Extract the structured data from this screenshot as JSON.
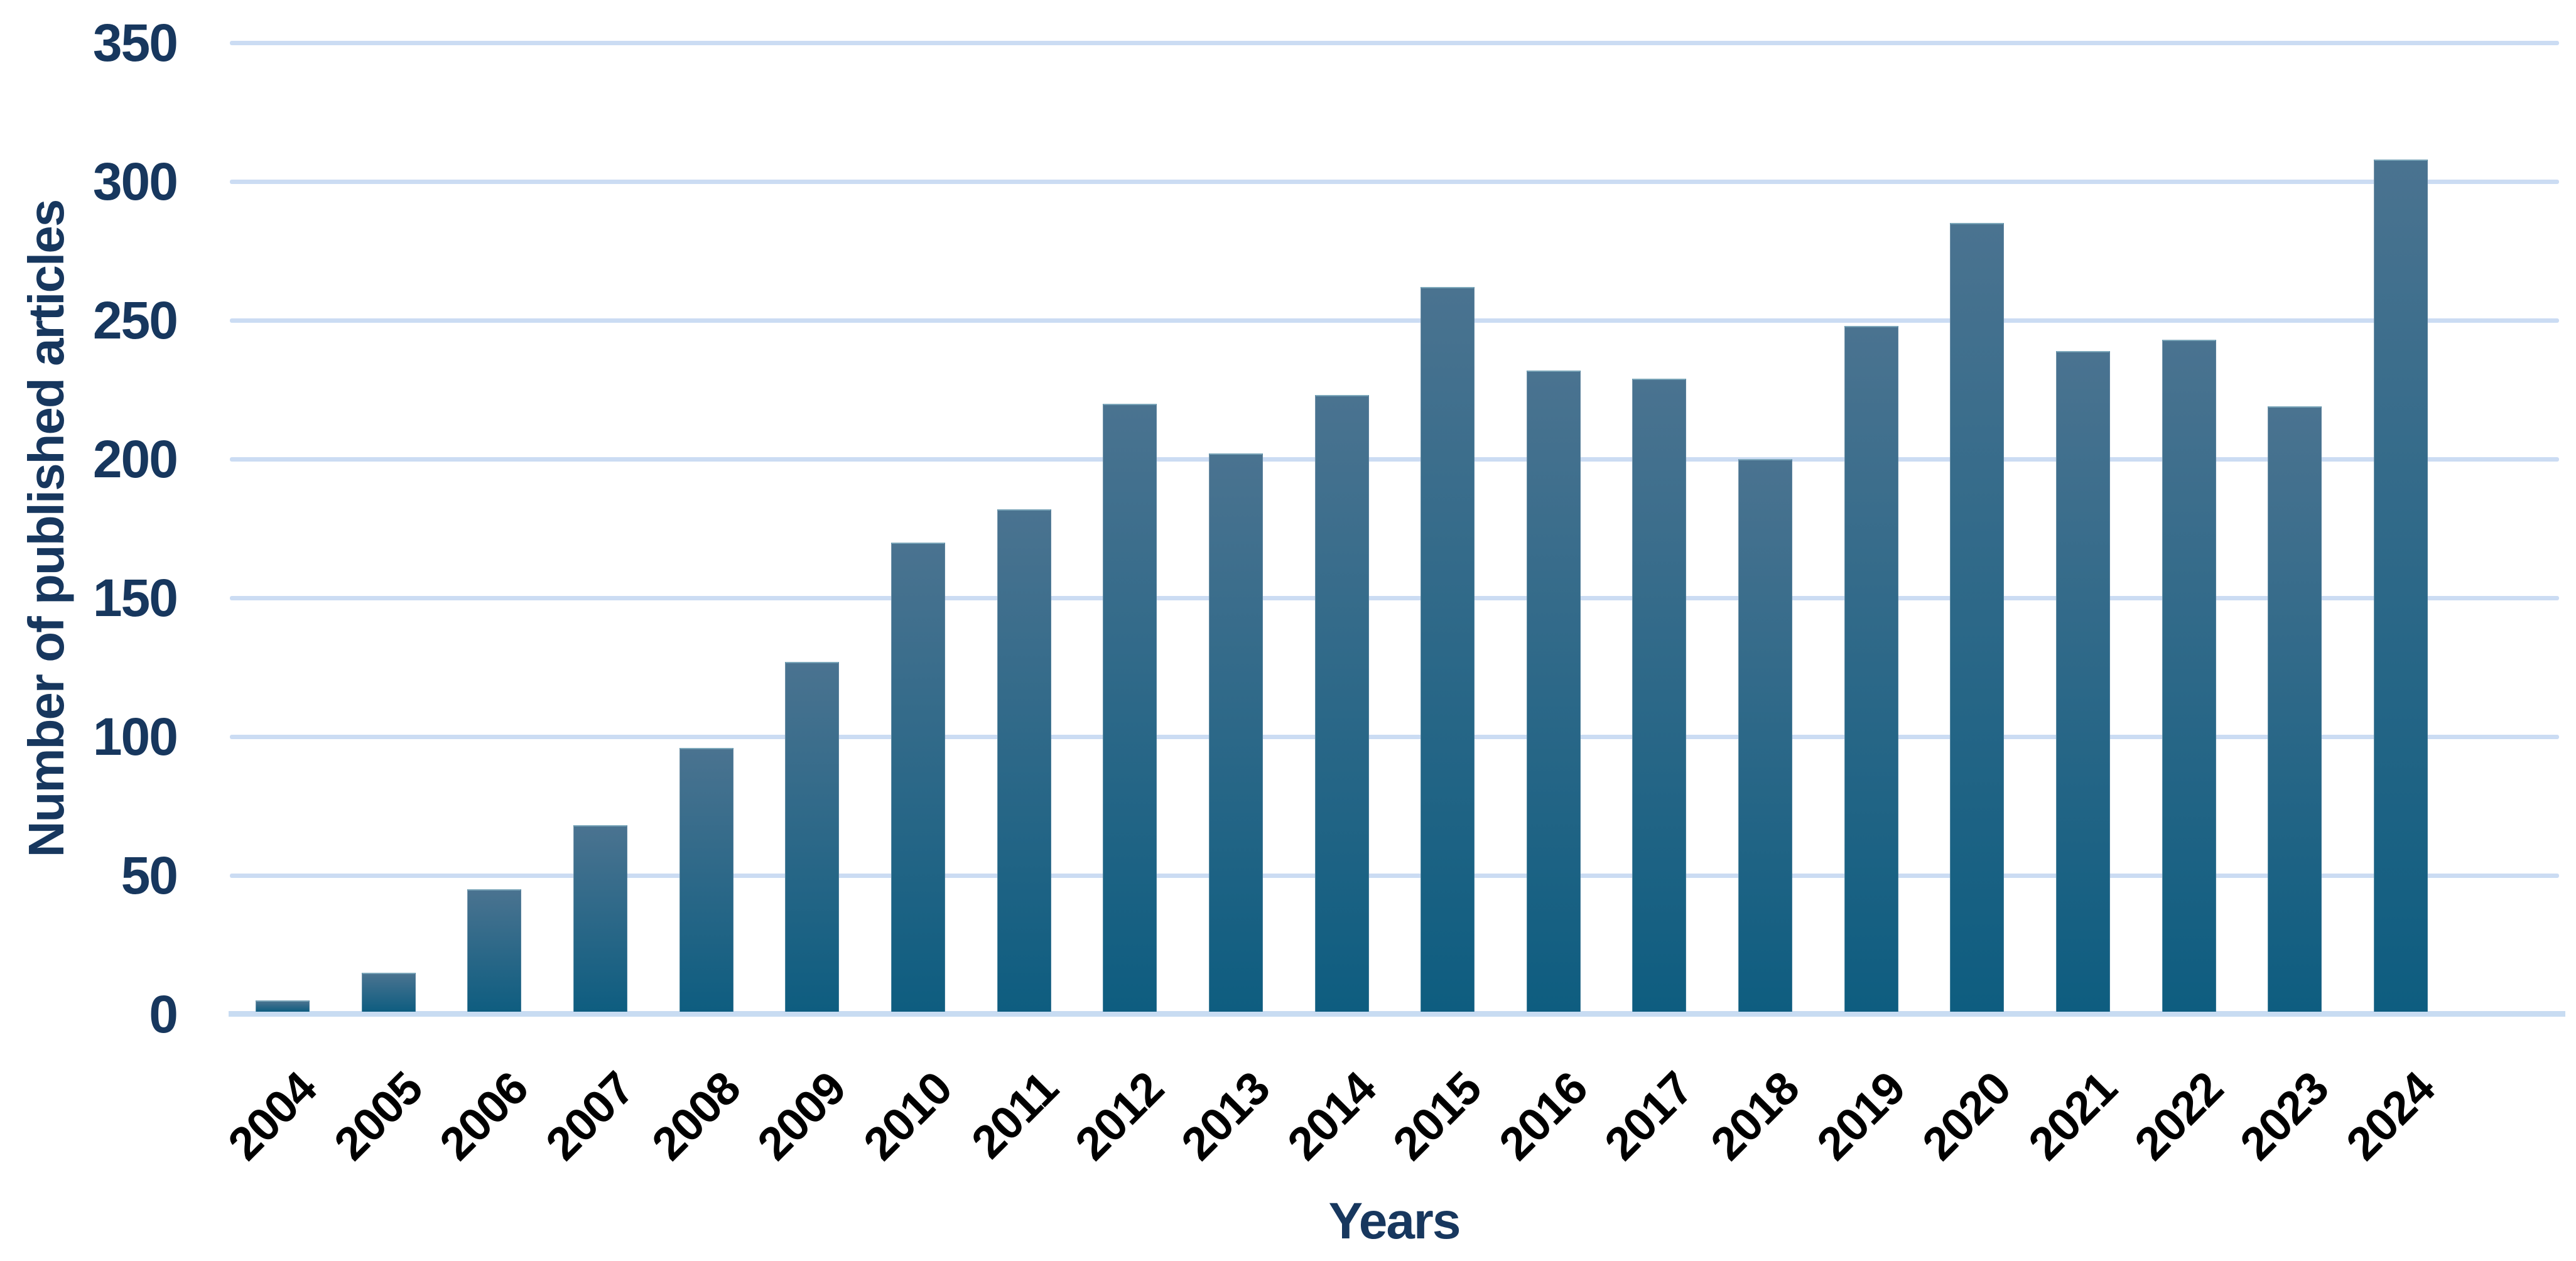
{
  "chart_data": {
    "type": "bar",
    "categories": [
      "2004",
      "2005",
      "2006",
      "2007",
      "2008",
      "2009",
      "2010",
      "2011",
      "2012",
      "2013",
      "2014",
      "2015",
      "2016",
      "2017",
      "2018",
      "2019",
      "2020",
      "2021",
      "2022",
      "2023",
      "2024"
    ],
    "values": [
      5,
      15,
      45,
      68,
      96,
      127,
      170,
      182,
      220,
      202,
      223,
      262,
      232,
      229,
      200,
      248,
      285,
      239,
      243,
      219,
      308
    ],
    "xlabel": "Years",
    "ylabel": "Number of published articles",
    "ylim": [
      0,
      350
    ],
    "yticks": [
      0,
      50,
      100,
      150,
      200,
      250,
      300,
      350
    ],
    "grid": "horizontal gridlines on",
    "legend": "none"
  },
  "colors": {
    "axis_text": "#17375e",
    "year_label": "#000000",
    "gridline": "#cbdcf3",
    "axis_band": "#c8dcf2",
    "bar_gradient_top": "#4a7390",
    "bar_gradient_bottom": "#0e5d80",
    "background": "#ffffff"
  }
}
